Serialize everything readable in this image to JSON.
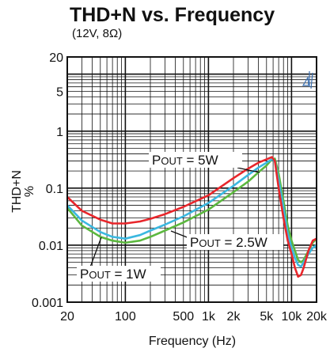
{
  "chart_data": {
    "type": "line",
    "title": "THD+N vs. Frequency",
    "subtitle": "(12V, 8Ω)",
    "xlabel": "Frequency (Hz)",
    "ylabel": "THD+N",
    "ylabel_unit": "%",
    "xscale": "log",
    "yscale": "log",
    "xlim": [
      20,
      20000
    ],
    "ylim": [
      0.001,
      20
    ],
    "grid": true,
    "x_ticks": [
      {
        "value": 20,
        "label": "20"
      },
      {
        "value": 100,
        "label": "100"
      },
      {
        "value": 500,
        "label": "500"
      },
      {
        "value": 1000,
        "label": "1k"
      },
      {
        "value": 2000,
        "label": "2k"
      },
      {
        "value": 5000,
        "label": "5k"
      },
      {
        "value": 10000,
        "label": "10k"
      },
      {
        "value": 20000,
        "label": "20k"
      }
    ],
    "y_ticks": [
      {
        "value": 0.001,
        "label": "0.001"
      },
      {
        "value": 0.01,
        "label": "0.01"
      },
      {
        "value": 0.1,
        "label": "0.1"
      },
      {
        "value": 1,
        "label": "1"
      },
      {
        "value": 5,
        "label": "5"
      },
      {
        "value": 20,
        "label": "20"
      }
    ],
    "series": [
      {
        "name": "POUT = 5W",
        "color": "#e8262b",
        "x": [
          20,
          30,
          50,
          70,
          100,
          150,
          200,
          300,
          500,
          1000,
          2000,
          3000,
          4000,
          5000,
          5800,
          6300,
          7000,
          8000,
          9000,
          10000,
          11000,
          12000,
          13000,
          14000,
          16000,
          18000,
          20000
        ],
        "y": [
          0.07,
          0.04,
          0.028,
          0.024,
          0.024,
          0.026,
          0.029,
          0.035,
          0.047,
          0.075,
          0.15,
          0.22,
          0.28,
          0.32,
          0.35,
          0.3,
          0.1,
          0.03,
          0.012,
          0.007,
          0.004,
          0.0028,
          0.003,
          0.004,
          0.008,
          0.012,
          0.013
        ]
      },
      {
        "name": "POUT = 2.5W",
        "color": "#3bb8e0",
        "x": [
          20,
          30,
          50,
          70,
          100,
          150,
          200,
          300,
          500,
          1000,
          2000,
          3000,
          4000,
          5000,
          5800,
          6300,
          7000,
          8000,
          9000,
          10000,
          11000,
          12000,
          13000,
          14000,
          16000,
          18000,
          20000
        ],
        "y": [
          0.05,
          0.027,
          0.017,
          0.014,
          0.013,
          0.015,
          0.018,
          0.023,
          0.032,
          0.055,
          0.11,
          0.17,
          0.23,
          0.28,
          0.32,
          0.3,
          0.14,
          0.045,
          0.016,
          0.009,
          0.006,
          0.0045,
          0.0042,
          0.005,
          0.007,
          0.009,
          0.01
        ]
      },
      {
        "name": "POUT = 1W",
        "color": "#5cb83f",
        "x": [
          20,
          30,
          50,
          70,
          100,
          150,
          200,
          300,
          500,
          1000,
          2000,
          3000,
          4000,
          5000,
          5800,
          6300,
          7000,
          8000,
          9000,
          10000,
          11000,
          12000,
          13000,
          14000,
          16000,
          18000,
          20000
        ],
        "y": [
          0.045,
          0.022,
          0.014,
          0.012,
          0.011,
          0.012,
          0.014,
          0.018,
          0.025,
          0.042,
          0.085,
          0.13,
          0.19,
          0.25,
          0.32,
          0.33,
          0.18,
          0.06,
          0.022,
          0.012,
          0.008,
          0.0055,
          0.005,
          0.0055,
          0.008,
          0.011,
          0.013
        ]
      }
    ],
    "annotations": [
      {
        "prefix": "P",
        "subscript": "OUT",
        "suffix": " = 5W",
        "series": "POUT = 5W"
      },
      {
        "prefix": "P",
        "subscript": "OUT",
        "suffix": " = 2.5W",
        "series": "POUT = 2.5W"
      },
      {
        "prefix": "P",
        "subscript": "OUT",
        "suffix": " = 1W",
        "series": "POUT = 1W"
      }
    ]
  }
}
